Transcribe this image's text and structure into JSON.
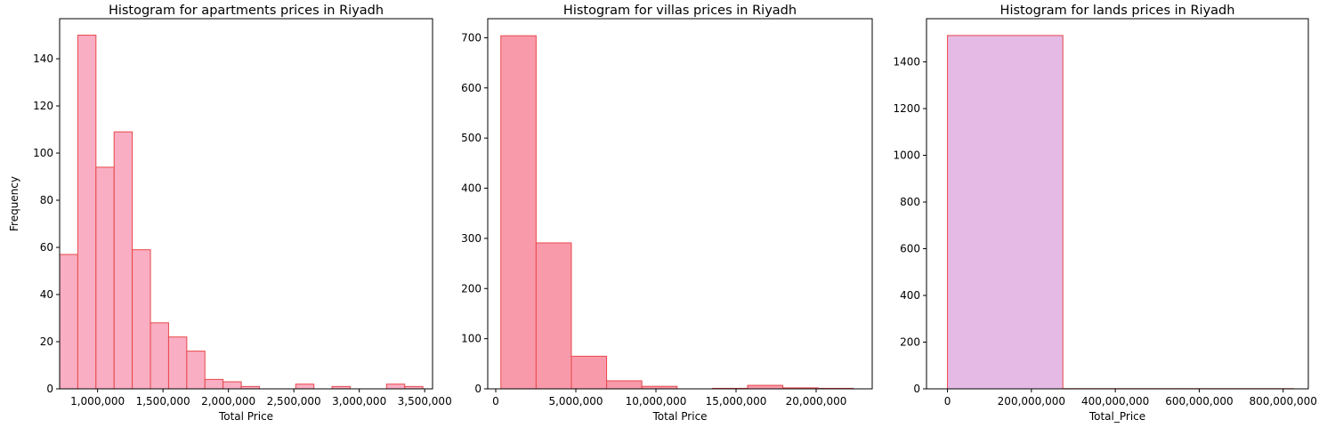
{
  "colors": {
    "edge": "#e8484a",
    "apartments_fill": "#f9aec3",
    "villas_fill": "#f99aab",
    "lands_fill": "#e5bbe6"
  },
  "chart_data": [
    {
      "type": "bar",
      "title": "Histogram for apartments prices in Riyadh",
      "xlabel": "Total Price",
      "ylabel": "Frequency",
      "xlim": [
        710000,
        3560000
      ],
      "ylim": [
        0,
        157
      ],
      "xticks": [
        1000000,
        1500000,
        2000000,
        2500000,
        3000000,
        3500000
      ],
      "xtick_labels": [
        "1,000,000",
        "1,500,000",
        "2,000,000",
        "2,500,000",
        "3,000,000",
        "3,500,000"
      ],
      "yticks": [
        0,
        20,
        40,
        60,
        80,
        100,
        120,
        140
      ],
      "ytick_labels": [
        "0",
        "20",
        "40",
        "60",
        "80",
        "100",
        "120",
        "140"
      ],
      "bin_start": 710000,
      "bin_width": 138800,
      "values": [
        57,
        150,
        94,
        109,
        59,
        28,
        22,
        16,
        4,
        3,
        1,
        0,
        0,
        2,
        0,
        1,
        0,
        0,
        2,
        1
      ]
    },
    {
      "type": "bar",
      "title": "Histogram for villas prices in Riyadh",
      "xlabel": "Total Price",
      "ylabel": "",
      "xlim": [
        -500000,
        23500000
      ],
      "ylim": [
        0,
        738
      ],
      "xticks": [
        0,
        5000000,
        10000000,
        15000000,
        20000000
      ],
      "xtick_labels": [
        "0",
        "5,000,000",
        "10,000,000",
        "15,000,000",
        "20,000,000"
      ],
      "yticks": [
        0,
        100,
        200,
        300,
        400,
        500,
        600,
        700
      ],
      "ytick_labels": [
        "0",
        "100",
        "200",
        "300",
        "400",
        "500",
        "600",
        "700"
      ],
      "bin_start": 320000,
      "bin_width": 2200000,
      "values": [
        704,
        291,
        65,
        16,
        5,
        0,
        1,
        7,
        2,
        1
      ]
    },
    {
      "type": "bar",
      "title": "Histogram for lands prices in Riyadh",
      "xlabel": "Total_Price",
      "ylabel": "",
      "xlim": [
        -50000000,
        860000000
      ],
      "ylim": [
        0,
        1585
      ],
      "xticks": [
        0,
        200000000,
        400000000,
        600000000,
        800000000
      ],
      "xtick_labels": [
        "0",
        "200,000,000",
        "400,000,000",
        "600,000,000",
        "800,000,000"
      ],
      "yticks": [
        0,
        200,
        400,
        600,
        800,
        1000,
        1200,
        1400
      ],
      "ytick_labels": [
        "0",
        "200",
        "400",
        "600",
        "800",
        "1000",
        "1200",
        "1400"
      ],
      "bin_start": 0,
      "bin_width": 275000000,
      "values": [
        1513,
        1,
        1
      ]
    }
  ]
}
